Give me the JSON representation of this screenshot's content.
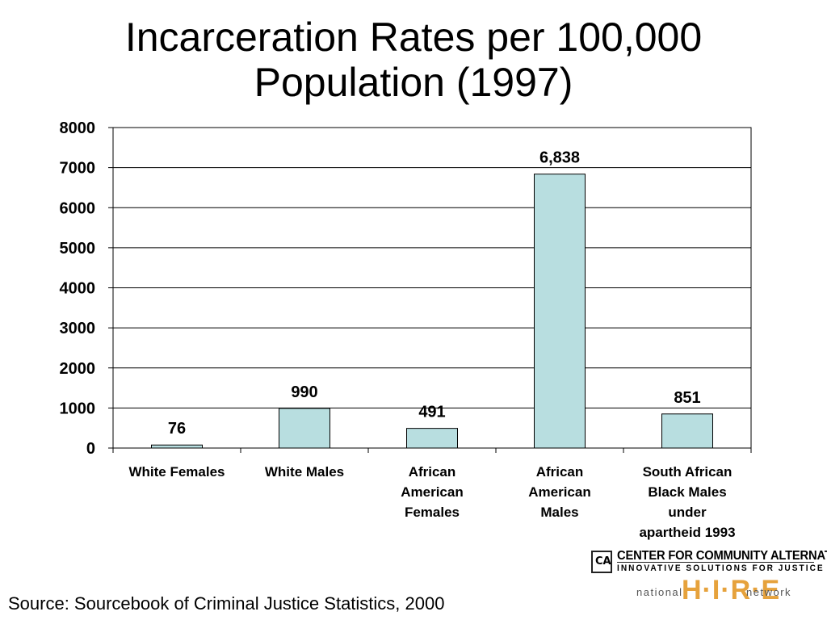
{
  "title_line1": "Incarceration Rates per 100,000",
  "title_line2": "Population (1997)",
  "source": "Source:  Sourcebook of Criminal Justice Statistics, 2000",
  "logo": {
    "org_line1": "CENTER FOR COMMUNITY ALTERNATIVES",
    "org_line2": "INNOVATIVE SOLUTIONS FOR JUSTICE",
    "network_left": "national",
    "network_mid": "H·I·R·E",
    "network_right": "network"
  },
  "colors": {
    "bar_fill": "#b8dee0",
    "bar_stroke": "#000000",
    "gridline": "#000000"
  },
  "chart_data": {
    "type": "bar",
    "title": "Incarceration Rates per 100,000 Population (1997)",
    "categories": [
      "White Females",
      "White Males",
      "African American Females",
      "African American Males",
      "South African Black Males under apartheid 1993"
    ],
    "category_lines": [
      [
        "White Females"
      ],
      [
        "White Males"
      ],
      [
        "African",
        "American",
        "Females"
      ],
      [
        "African",
        "American",
        "Males"
      ],
      [
        "South African",
        "Black Males",
        "under",
        "apartheid 1993"
      ]
    ],
    "values": [
      76,
      990,
      491,
      6838,
      851
    ],
    "value_labels": [
      "76",
      "990",
      "491",
      "6,838",
      "851"
    ],
    "ylim": [
      0,
      8000
    ],
    "yticks": [
      0,
      1000,
      2000,
      3000,
      4000,
      5000,
      6000,
      7000,
      8000
    ],
    "grid": true,
    "xlabel": "",
    "ylabel": ""
  }
}
